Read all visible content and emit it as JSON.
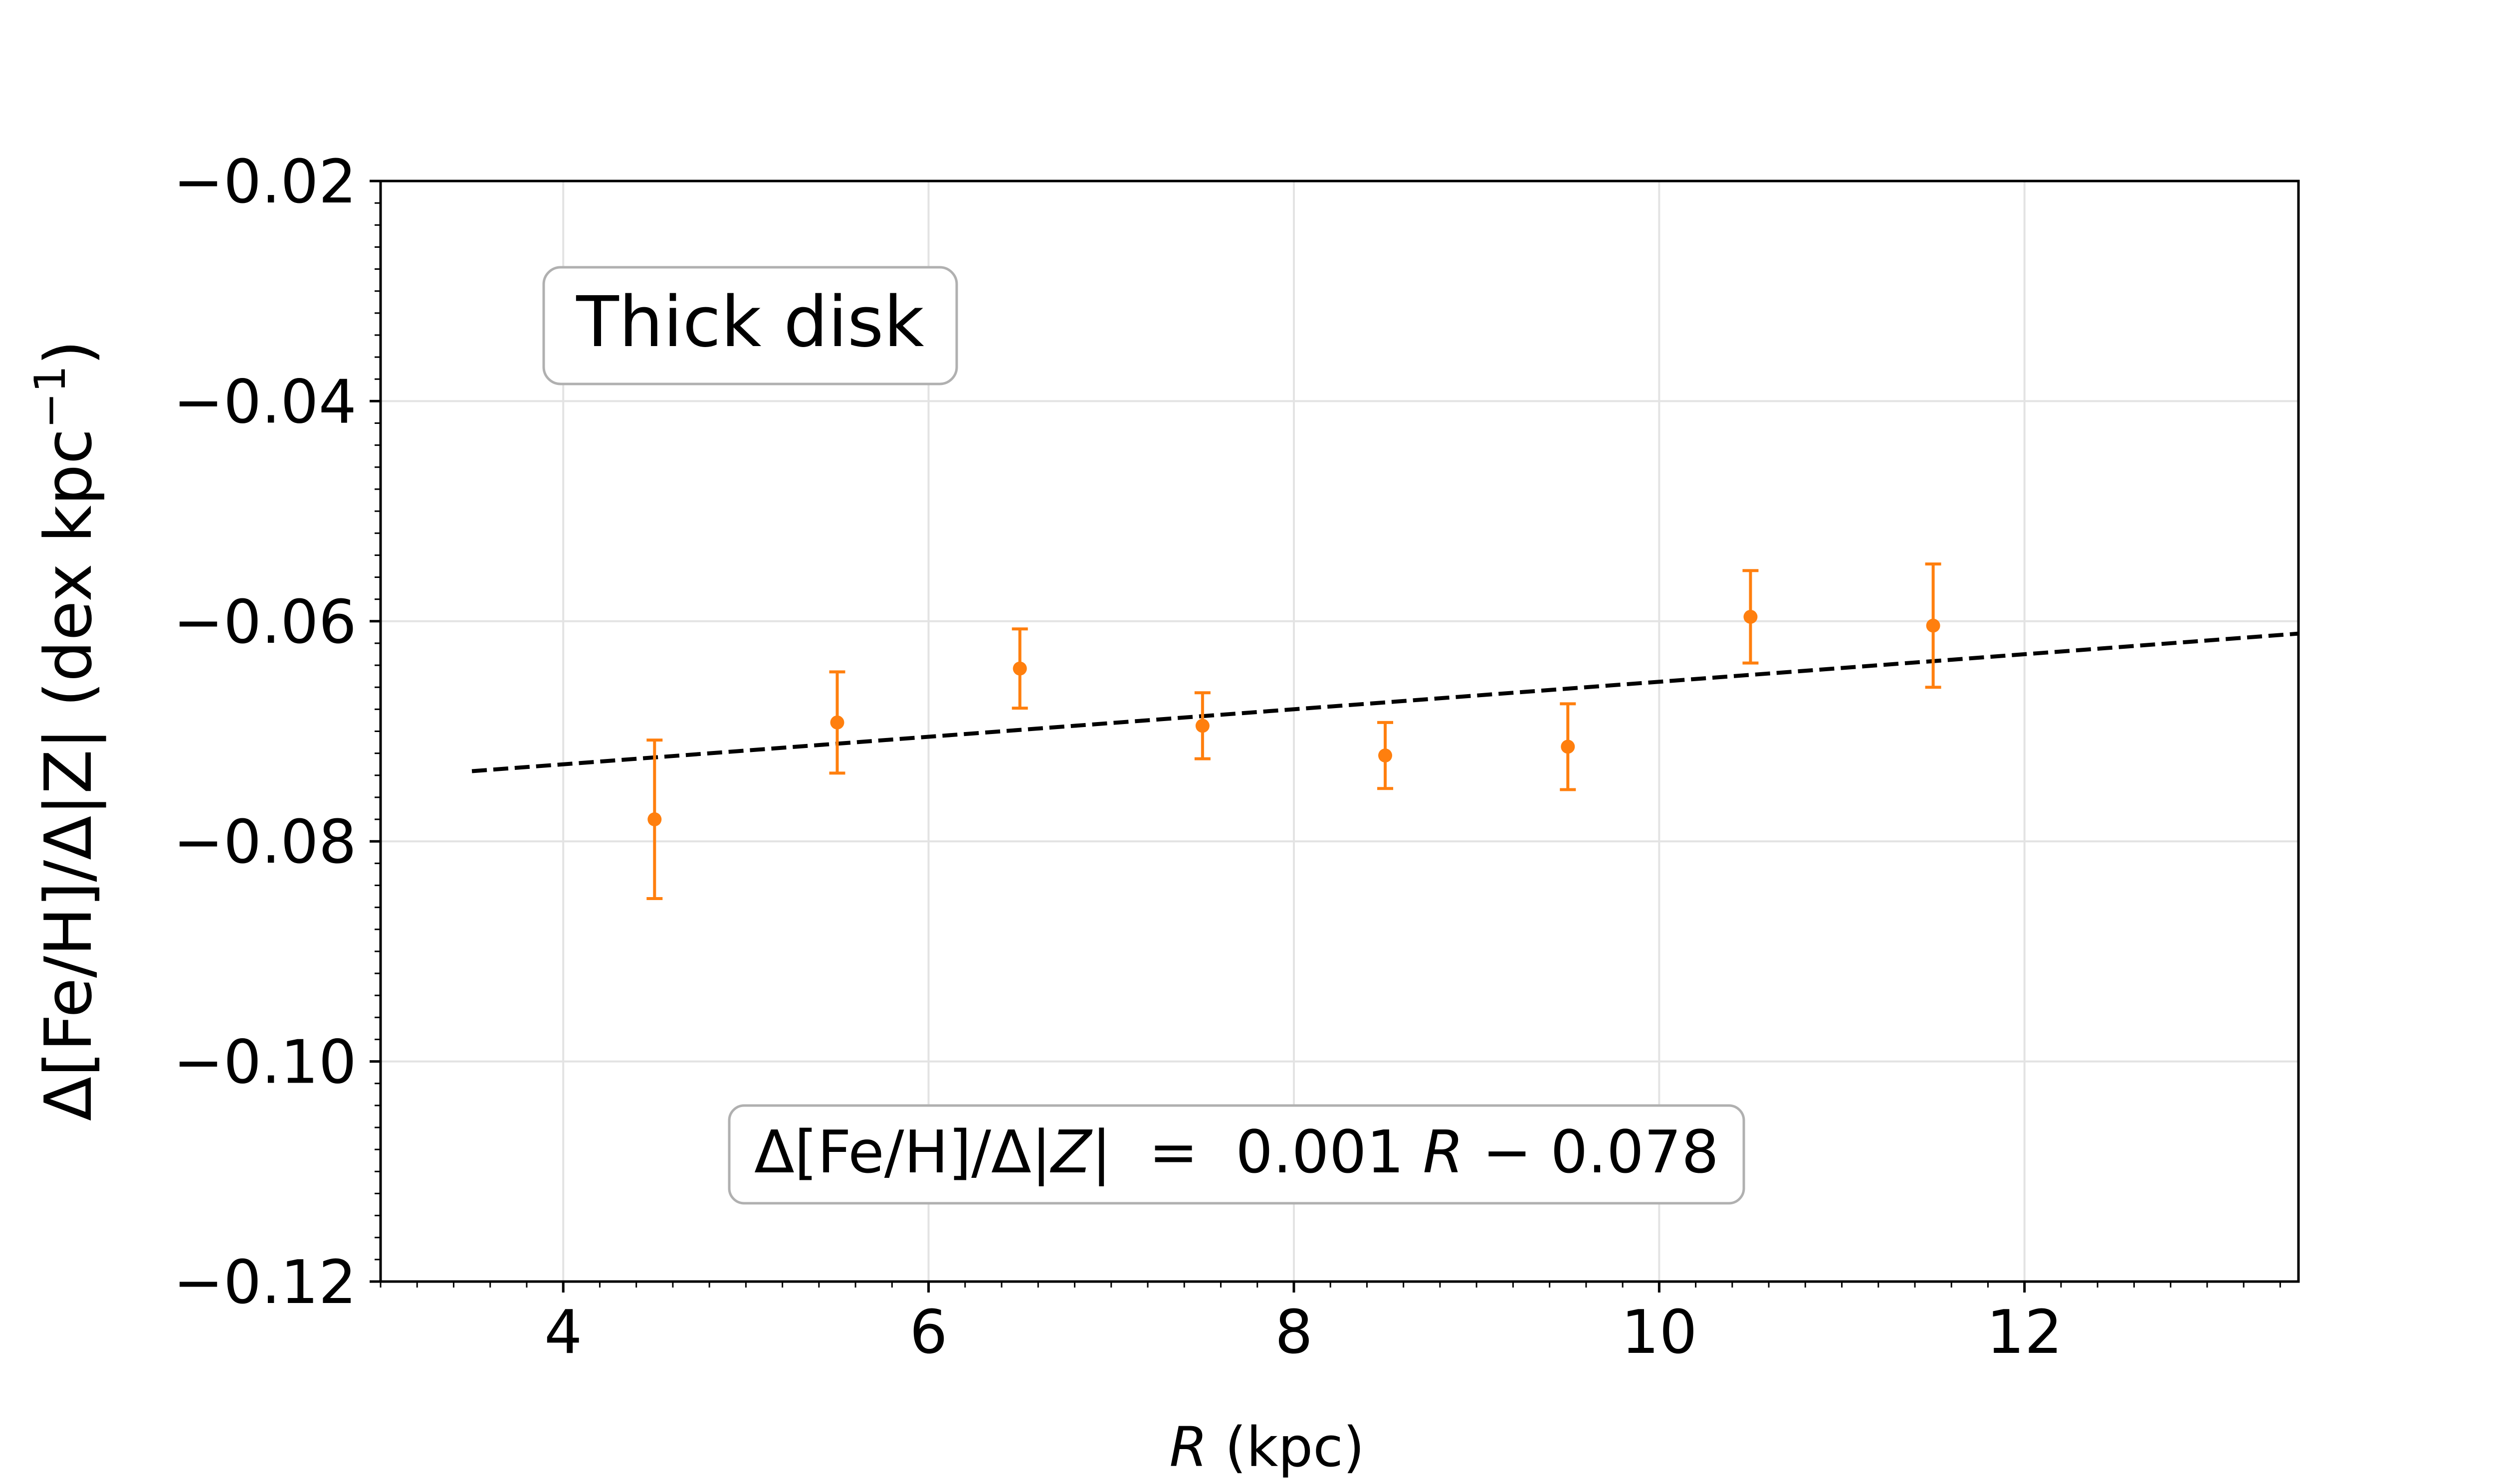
{
  "chart_data": {
    "type": "scatter",
    "title": "",
    "xlabel": {
      "italic": "R",
      "rest": " (kpc)"
    },
    "ylabel": {
      "main": "Δ[Fe/H]/Δ|Z| (dex kpc",
      "sup": "−1",
      "close": ")"
    },
    "xlim": [
      3.0,
      13.5
    ],
    "ylim": [
      -0.12,
      -0.02
    ],
    "xticks": [
      4,
      6,
      8,
      10,
      12
    ],
    "xtick_labels": [
      "4",
      "6",
      "8",
      "10",
      "12"
    ],
    "yticks": [
      -0.12,
      -0.1,
      -0.08,
      -0.06,
      -0.04,
      -0.02
    ],
    "ytick_labels": [
      "−0.12",
      "−0.10",
      "−0.08",
      "−0.06",
      "−0.04",
      "−0.02"
    ],
    "grid": true,
    "series": [
      {
        "name": "Thick disk",
        "color": "#ff7f0e",
        "x": [
          4.5,
          5.5,
          6.5,
          7.5,
          8.5,
          9.5,
          10.5,
          11.5
        ],
        "y": [
          -0.078,
          -0.0692,
          -0.0643,
          -0.0695,
          -0.0722,
          -0.0714,
          -0.0596,
          -0.0604
        ],
        "yerr": [
          0.0072,
          0.0046,
          0.0036,
          0.003,
          0.003,
          0.0039,
          0.0042,
          0.0056
        ]
      }
    ],
    "fit_line": {
      "style": "dashed",
      "color": "#000000",
      "slope": 0.00125,
      "intercept": -0.078,
      "x_range": [
        3.5,
        13.5
      ]
    },
    "annotations": {
      "panel_label": "Thick disk",
      "equation": {
        "lhs_a": "Δ[Fe/H]/Δ|",
        "lhs_z": "Z",
        "lhs_b": "|",
        "mid": "  =  0.001 ",
        "r": "R",
        "rhs": " − 0.078"
      }
    }
  }
}
